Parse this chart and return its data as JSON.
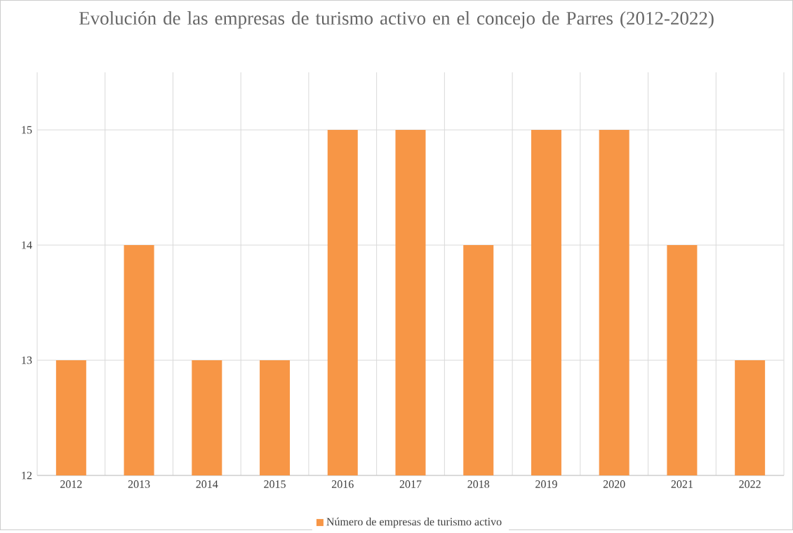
{
  "chart_data": {
    "type": "bar",
    "title": "Evolución de las empresas de turismo activo en el concejo de Parres (2012-2022)",
    "categories": [
      "2012",
      "2013",
      "2014",
      "2015",
      "2016",
      "2017",
      "2018",
      "2019",
      "2020",
      "2021",
      "2022"
    ],
    "series": [
      {
        "name": "Número de empresas de turismo activo",
        "color": "#f79646",
        "values": [
          13,
          14,
          13,
          13,
          15,
          15,
          14,
          15,
          15,
          14,
          13
        ]
      }
    ],
    "ylim": [
      12,
      15.5
    ],
    "yticks": [
      12,
      13,
      14,
      15
    ],
    "grid": true,
    "legend": "bottom"
  }
}
